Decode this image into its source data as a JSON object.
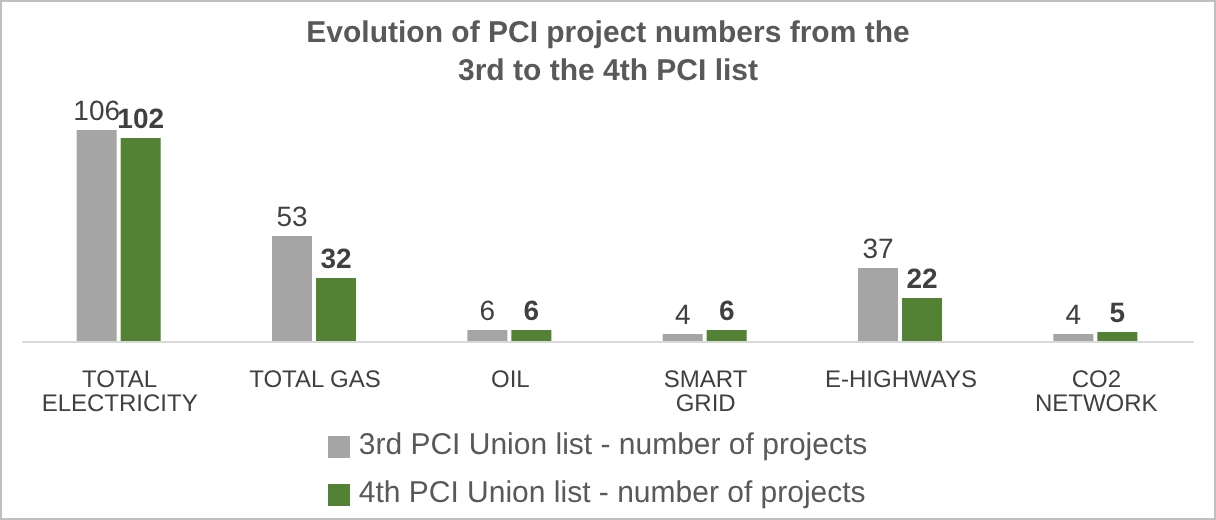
{
  "chart_data": {
    "type": "bar",
    "title": "Evolution of PCI  project numbers from the 3rd to the 4th PCI list",
    "categories": [
      "TOTAL ELECTRICITY",
      "TOTAL GAS",
      "OIL",
      "SMART GRID",
      "E-HIGHWAYS",
      "CO2 NETWORK"
    ],
    "series": [
      {
        "name": "3rd PCI Union list - number of projects",
        "color": "#a5a5a5",
        "values": [
          106,
          53,
          6,
          4,
          37,
          4
        ]
      },
      {
        "name": "4th PCI Union list - number of projects",
        "color": "#548235",
        "values": [
          102,
          32,
          6,
          6,
          22,
          5
        ]
      }
    ],
    "data_labels": true,
    "legend": "bottom",
    "grid": false
  }
}
